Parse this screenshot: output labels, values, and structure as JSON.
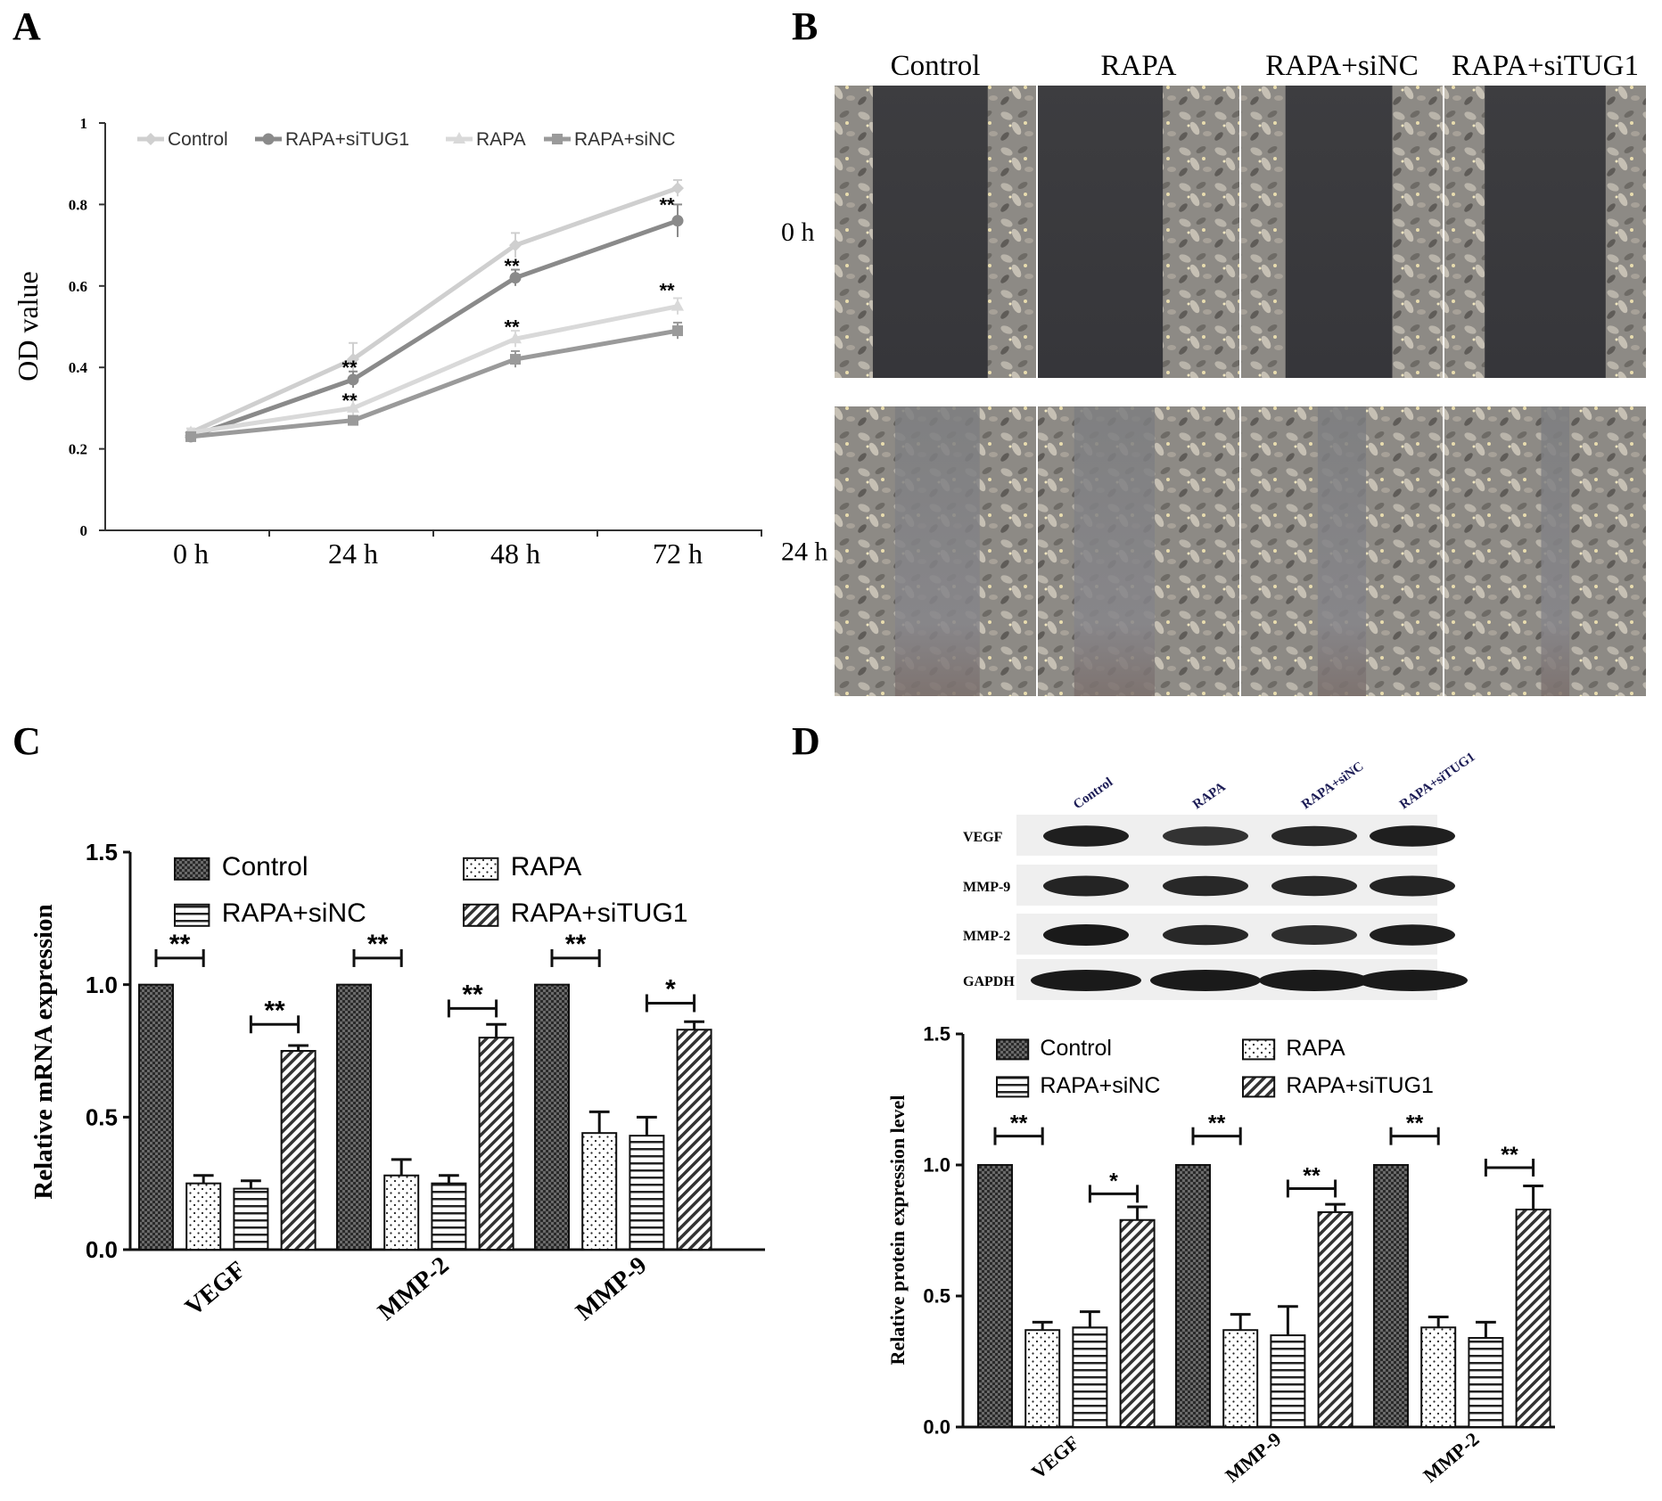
{
  "panel_labels": [
    "A",
    "B",
    "C",
    "D"
  ],
  "colors": {
    "control_line": "#cfcfcf",
    "siTUG1_line": "#8a8a8a",
    "rapa_line": "#d9d9d9",
    "siNC_line": "#9a9a9a",
    "gel_band": "#1a1a1a",
    "micro_dark": "#3a3a3d",
    "micro_cells": "#9a9690"
  },
  "chart_data": [
    {
      "panel": "A",
      "type": "line",
      "xlabel": "",
      "ylabel": "OD value",
      "categories": [
        "0 h",
        "24 h",
        "48 h",
        "72 h"
      ],
      "ylim": [
        0,
        1
      ],
      "yticks": [
        "0",
        "0.2",
        "0.4",
        "0.6",
        "0.8",
        "1"
      ],
      "legend_position": "top",
      "series": [
        {
          "name": "Control",
          "values": [
            0.24,
            0.42,
            0.7,
            0.84
          ],
          "errors": [
            0.01,
            0.04,
            0.03,
            0.02
          ],
          "marker": "diamond",
          "color_key": "control_line"
        },
        {
          "name": "RAPA+siTUG1",
          "values": [
            0.23,
            0.37,
            0.62,
            0.76
          ],
          "errors": [
            0.01,
            0.02,
            0.02,
            0.04
          ],
          "marker": "circle",
          "color_key": "siTUG1_line"
        },
        {
          "name": "RAPA",
          "values": [
            0.24,
            0.3,
            0.47,
            0.55
          ],
          "errors": [
            0.01,
            0.02,
            0.02,
            0.02
          ],
          "marker": "triangle",
          "color_key": "rapa_line"
        },
        {
          "name": "RAPA+siNC",
          "values": [
            0.23,
            0.27,
            0.42,
            0.49
          ],
          "errors": [
            0.01,
            0.01,
            0.02,
            0.02
          ],
          "marker": "square",
          "color_key": "siNC_line"
        }
      ],
      "annotations": [
        {
          "text": "**",
          "x": "24 h",
          "y": 0.4
        },
        {
          "text": "**",
          "x": "24 h",
          "y": 0.32
        },
        {
          "text": "**",
          "x": "48 h",
          "y": 0.65
        },
        {
          "text": "**",
          "x": "48 h",
          "y": 0.5
        },
        {
          "text": "**",
          "x": "72 h",
          "y": 0.8
        },
        {
          "text": "**",
          "x": "72 h",
          "y": 0.59
        }
      ]
    },
    {
      "panel": "C",
      "type": "bar",
      "xlabel": "",
      "ylabel": "Relative  mRNA expression",
      "categories": [
        "VEGF",
        "MMP-2",
        "MMP-9"
      ],
      "ylim": [
        0,
        1.5
      ],
      "yticks": [
        "0.0",
        "0.5",
        "1.0",
        "1.5"
      ],
      "legend_position": "top",
      "series": [
        {
          "name": "Control",
          "values": [
            1.0,
            1.0,
            1.0
          ],
          "errors": [
            0,
            0,
            0
          ],
          "pattern": "checker"
        },
        {
          "name": "RAPA",
          "values": [
            0.25,
            0.28,
            0.44
          ],
          "errors": [
            0.03,
            0.06,
            0.08
          ],
          "pattern": "dots"
        },
        {
          "name": "RAPA+siNC",
          "values": [
            0.23,
            0.25,
            0.43
          ],
          "errors": [
            0.03,
            0.03,
            0.07
          ],
          "pattern": "hlines"
        },
        {
          "name": "RAPA+siTUG1",
          "values": [
            0.75,
            0.8,
            0.83
          ],
          "errors": [
            0.02,
            0.05,
            0.03
          ],
          "pattern": "diag"
        }
      ],
      "significance": [
        {
          "text": "**",
          "category": "VEGF",
          "from": "Control",
          "to": "RAPA",
          "y": 1.1
        },
        {
          "text": "**",
          "category": "VEGF",
          "from": "RAPA+siNC",
          "to": "RAPA+siTUG1",
          "y": 0.85
        },
        {
          "text": "**",
          "category": "MMP-2",
          "from": "Control",
          "to": "RAPA",
          "y": 1.1
        },
        {
          "text": "**",
          "category": "MMP-2",
          "from": "RAPA+siNC",
          "to": "RAPA+siTUG1",
          "y": 0.91
        },
        {
          "text": "**",
          "category": "MMP-9",
          "from": "Control",
          "to": "RAPA",
          "y": 1.1
        },
        {
          "text": "*",
          "category": "MMP-9",
          "from": "RAPA+siNC",
          "to": "RAPA+siTUG1",
          "y": 0.93
        }
      ]
    },
    {
      "panel": "D",
      "type": "bar",
      "xlabel": "",
      "ylabel": "Relative protein expression level",
      "categories": [
        "VEGF",
        "MMP-9",
        "MMP-2"
      ],
      "ylim": [
        0,
        1.5
      ],
      "yticks": [
        "0.0",
        "0.5",
        "1.0",
        "1.5"
      ],
      "legend_position": "top",
      "series": [
        {
          "name": "Control",
          "values": [
            1.0,
            1.0,
            1.0
          ],
          "errors": [
            0,
            0,
            0
          ],
          "pattern": "checker"
        },
        {
          "name": "RAPA",
          "values": [
            0.37,
            0.37,
            0.38
          ],
          "errors": [
            0.03,
            0.06,
            0.04
          ],
          "pattern": "dots"
        },
        {
          "name": "RAPA+siNC",
          "values": [
            0.38,
            0.35,
            0.34
          ],
          "errors": [
            0.06,
            0.11,
            0.06
          ],
          "pattern": "hlines"
        },
        {
          "name": "RAPA+siTUG1",
          "values": [
            0.79,
            0.82,
            0.83
          ],
          "errors": [
            0.05,
            0.03,
            0.09
          ],
          "pattern": "diag"
        }
      ],
      "significance": [
        {
          "text": "**",
          "category": "VEGF",
          "from": "Control",
          "to": "RAPA",
          "y": 1.11
        },
        {
          "text": "*",
          "category": "VEGF",
          "from": "RAPA+siNC",
          "to": "RAPA+siTUG1",
          "y": 0.89
        },
        {
          "text": "**",
          "category": "MMP-9",
          "from": "Control",
          "to": "RAPA",
          "y": 1.11
        },
        {
          "text": "**",
          "category": "MMP-9",
          "from": "RAPA+siNC",
          "to": "RAPA+siTUG1",
          "y": 0.91
        },
        {
          "text": "**",
          "category": "MMP-2",
          "from": "Control",
          "to": "RAPA",
          "y": 1.11
        },
        {
          "text": "**",
          "category": "MMP-2",
          "from": "RAPA+siNC",
          "to": "RAPA+siTUG1",
          "y": 0.99
        }
      ]
    }
  ],
  "panel_b": {
    "columns": [
      "Control",
      "RAPA",
      "RAPA+siNC",
      "RAPA+siTUG1"
    ],
    "rows": [
      "0 h",
      "24 h"
    ]
  },
  "panel_d_blot": {
    "lanes": [
      "Control",
      "RAPA",
      "RAPA+siNC",
      "RAPA+siTUG1"
    ],
    "proteins": [
      {
        "name": "VEGF",
        "band_strength": [
          0.95,
          0.75,
          0.85,
          0.95
        ]
      },
      {
        "name": "MMP-9",
        "band_strength": [
          0.9,
          0.85,
          0.85,
          0.9
        ]
      },
      {
        "name": "MMP-2",
        "band_strength": [
          1.0,
          0.85,
          0.8,
          0.95
        ]
      },
      {
        "name": "GAPDH",
        "band_strength": [
          1.0,
          1.0,
          1.0,
          1.0
        ]
      }
    ]
  }
}
